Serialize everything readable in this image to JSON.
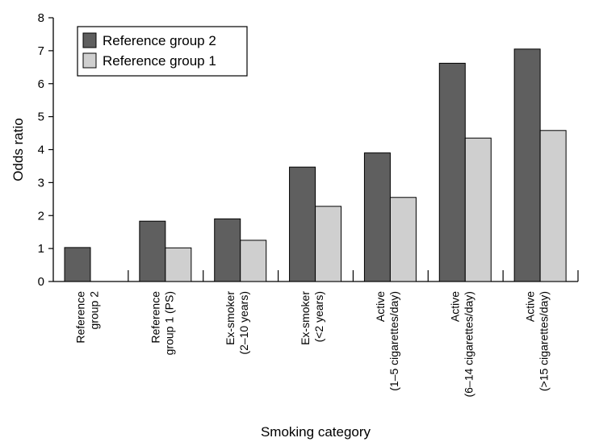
{
  "chart_data": {
    "type": "bar",
    "categories": [
      [
        "Reference",
        "group 2"
      ],
      [
        "Reference",
        "group 1 (PS)"
      ],
      [
        "Ex-smoker",
        "(2–10 years)"
      ],
      [
        "Ex-smoker",
        "(<2 years)"
      ],
      [
        "Active",
        "(1–5 cigarettes/day)"
      ],
      [
        "Active",
        "(6–14 cigarettes/day)"
      ],
      [
        "Active",
        "(>15 cigarettes/day)"
      ]
    ],
    "series": [
      {
        "name": "Reference group 2",
        "color": "#5f5f5f",
        "values": [
          1.03,
          1.83,
          1.9,
          3.47,
          3.9,
          6.62,
          7.05
        ]
      },
      {
        "name": "Reference group 1",
        "color": "#cfcfcf",
        "values": [
          null,
          1.02,
          1.25,
          2.28,
          2.55,
          4.35,
          4.58
        ]
      }
    ],
    "xlabel": "Smoking category",
    "ylabel": "Odds ratio",
    "ylim": [
      0,
      8
    ],
    "yticks": [
      "0",
      "1",
      "2",
      "3",
      "4",
      "5",
      "6",
      "7",
      "8"
    ],
    "grid": false,
    "legend_position": "top-left"
  }
}
